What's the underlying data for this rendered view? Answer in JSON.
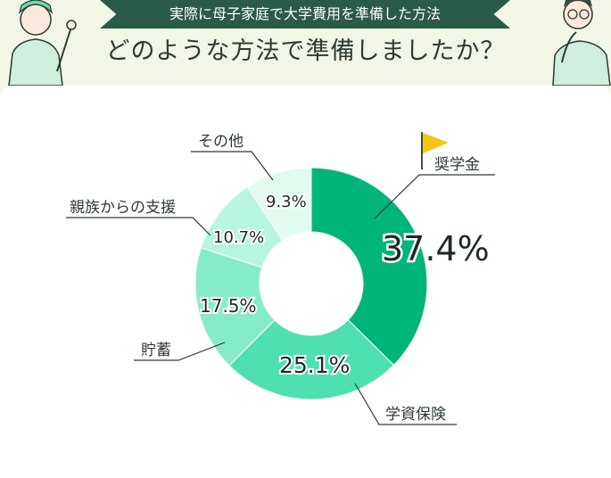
{
  "header": {
    "banner": "実際に母子家庭で大学費用を準備した方法",
    "question": "どのような方法で準備しましたか？"
  },
  "chart_data": {
    "type": "pie",
    "donut": true,
    "categories": [
      "奨学金",
      "学資保険",
      "貯蓄",
      "親族からの支援",
      "その他"
    ],
    "values": [
      37.4,
      25.1,
      17.5,
      10.7,
      9.3
    ],
    "value_labels": [
      "37.4%",
      "25.1%",
      "17.5%",
      "10.7%",
      "9.3%"
    ],
    "colors": [
      "#00b57a",
      "#4fe0b2",
      "#86ecc8",
      "#b8f5de",
      "#e2fbef"
    ]
  }
}
